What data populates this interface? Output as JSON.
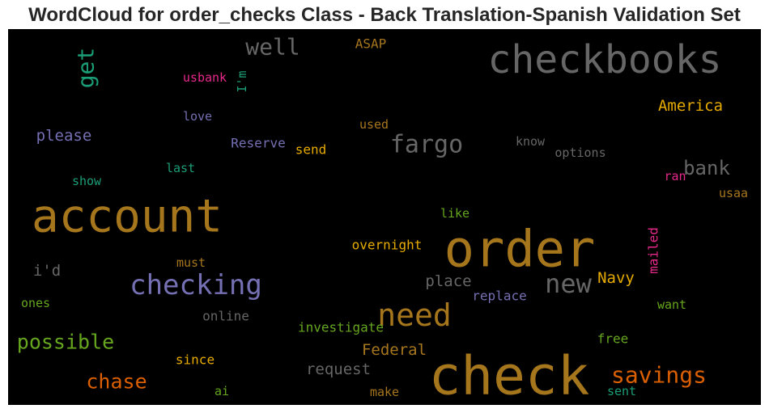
{
  "chart_data": {
    "type": "wordcloud",
    "title": "WordCloud for order_checks Class - Back Translation-Spanish Validation Set",
    "background": "#000000",
    "words": [
      {
        "text": "checkbooks",
        "color": "#666666"
      },
      {
        "text": "account",
        "color": "#a6761d"
      },
      {
        "text": "order",
        "color": "#a6761d"
      },
      {
        "text": "check",
        "color": "#a6761d"
      },
      {
        "text": "checking",
        "color": "#7570b3"
      },
      {
        "text": "need",
        "color": "#a6761d"
      },
      {
        "text": "new",
        "color": "#666666"
      },
      {
        "text": "fargo",
        "color": "#666666"
      },
      {
        "text": "well",
        "color": "#666666"
      },
      {
        "text": "get",
        "color": "#1b9e77"
      },
      {
        "text": "savings",
        "color": "#d95f02"
      },
      {
        "text": "possible",
        "color": "#66a61e"
      },
      {
        "text": "chase",
        "color": "#d95f02"
      },
      {
        "text": "bank",
        "color": "#666666"
      },
      {
        "text": "America",
        "color": "#e6ab02"
      },
      {
        "text": "please",
        "color": "#7570b3"
      },
      {
        "text": "Navy",
        "color": "#e6ab02"
      },
      {
        "text": "Federal",
        "color": "#a6761d"
      },
      {
        "text": "i'd",
        "color": "#666666"
      },
      {
        "text": "place",
        "color": "#666666"
      },
      {
        "text": "request",
        "color": "#666666"
      },
      {
        "text": "ASAP",
        "color": "#a6761d"
      },
      {
        "text": "usbank",
        "color": "#e7298a"
      },
      {
        "text": "I'm",
        "color": "#1b9e77"
      },
      {
        "text": "love",
        "color": "#7570b3"
      },
      {
        "text": "used",
        "color": "#a6761d"
      },
      {
        "text": "Reserve",
        "color": "#7570b3"
      },
      {
        "text": "send",
        "color": "#e6ab02"
      },
      {
        "text": "know",
        "color": "#666666"
      },
      {
        "text": "options",
        "color": "#666666"
      },
      {
        "text": "last",
        "color": "#1b9e77"
      },
      {
        "text": "show",
        "color": "#1b9e77"
      },
      {
        "text": "ran",
        "color": "#e7298a"
      },
      {
        "text": "usaa",
        "color": "#a6761d"
      },
      {
        "text": "like",
        "color": "#66a61e"
      },
      {
        "text": "overnight",
        "color": "#e6ab02"
      },
      {
        "text": "mailed",
        "color": "#e7298a"
      },
      {
        "text": "must",
        "color": "#a6761d"
      },
      {
        "text": "replace",
        "color": "#7570b3"
      },
      {
        "text": "ones",
        "color": "#66a61e"
      },
      {
        "text": "online",
        "color": "#666666"
      },
      {
        "text": "want",
        "color": "#66a61e"
      },
      {
        "text": "investigate",
        "color": "#66a61e"
      },
      {
        "text": "free",
        "color": "#66a61e"
      },
      {
        "text": "since",
        "color": "#e6ab02"
      },
      {
        "text": "ai",
        "color": "#66a61e"
      },
      {
        "text": "make",
        "color": "#a6761d"
      },
      {
        "text": "sent",
        "color": "#1b9e77"
      }
    ]
  }
}
